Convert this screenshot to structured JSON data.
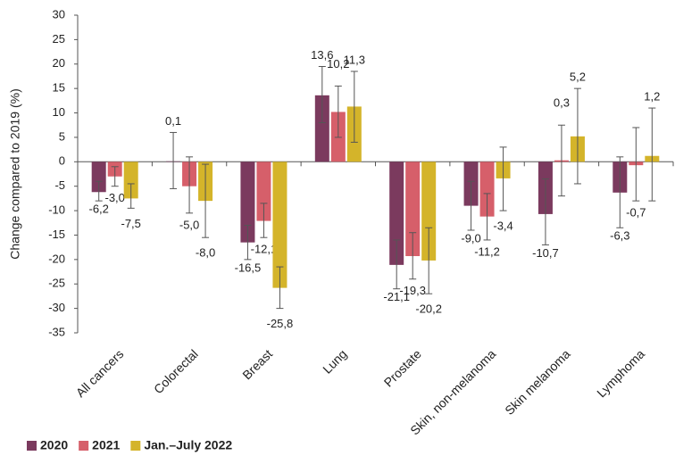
{
  "chart_data": {
    "type": "bar",
    "y_label": "Change compared to 2019 (%)",
    "categories": [
      "All cancers",
      "Colorectal",
      "Breast",
      "Lung",
      "Prostate",
      "Skin, non-melanoma",
      "Skin melanoma",
      "Lymphoma"
    ],
    "series": [
      {
        "name": "2020",
        "color": "#7b3a5e",
        "values": [
          -6.2,
          0.1,
          -16.5,
          13.6,
          -21.1,
          -9.0,
          -10.7,
          -6.3
        ],
        "value_labels": [
          "-6,2",
          "0,1",
          "-16,5",
          "13,6",
          "-21,1",
          "-9,0",
          "-10,7",
          "-6,3"
        ],
        "error_low": [
          -8,
          -5.5,
          -20,
          8,
          -26,
          -14,
          -17,
          -13.5
        ],
        "error_high": [
          -4,
          6,
          -13,
          19.5,
          -16,
          -4,
          -3.5,
          1
        ]
      },
      {
        "name": "2021",
        "color": "#d65f6a",
        "values": [
          -3.0,
          -5.0,
          -12.1,
          10.2,
          -19.3,
          -11.2,
          0.3,
          -0.7
        ],
        "value_labels": [
          "-3,0",
          "-5,0",
          "-12,1",
          "10,2",
          "-19,3",
          "-11,2",
          "0,3",
          "-0,7"
        ],
        "error_low": [
          -5,
          -10.5,
          -15.5,
          5,
          -24,
          -16,
          -7,
          -8
        ],
        "error_high": [
          -1,
          1,
          -8.5,
          15.5,
          -14.5,
          -6.5,
          7.5,
          7
        ]
      },
      {
        "name": "Jan.–July  2022",
        "color": "#d4b42a",
        "values": [
          -7.5,
          -8.0,
          -25.8,
          11.3,
          -20.2,
          -3.4,
          5.2,
          1.2
        ],
        "value_labels": [
          "-7,5",
          "-8,0",
          "-25,8",
          "11,3",
          "-20,2",
          "-3,4",
          "5,2",
          "1,2"
        ],
        "error_low": [
          -9.5,
          -15.5,
          -30,
          4,
          -27,
          -10,
          -4.5,
          -8
        ],
        "error_high": [
          -4.5,
          -0.5,
          -21.5,
          18.5,
          -13.5,
          3,
          15,
          11
        ]
      }
    ],
    "ylim": [
      -35,
      30
    ],
    "yticks": [
      -35,
      -30,
      -25,
      -20,
      -15,
      -10,
      -5,
      0,
      5,
      10,
      15,
      20,
      25,
      30
    ],
    "grid": false,
    "legend": "bottom-left"
  }
}
